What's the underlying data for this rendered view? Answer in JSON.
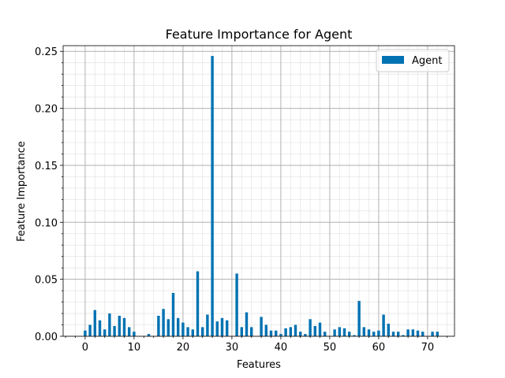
{
  "chart_data": {
    "type": "bar",
    "title": "Feature Importance for Agent",
    "xlabel": "Features",
    "ylabel": "Feature Importance",
    "xlim": [
      -4.5,
      75.5
    ],
    "ylim": [
      0,
      0.255
    ],
    "xticks": [
      0,
      10,
      20,
      30,
      40,
      50,
      60,
      70
    ],
    "yticks": [
      0.0,
      0.05,
      0.1,
      0.15,
      0.2,
      0.25
    ],
    "ytick_labels": [
      "0.00",
      "0.05",
      "0.10",
      "0.15",
      "0.20",
      "0.25"
    ],
    "grid": "major and minor",
    "legend": "top-right",
    "series": [
      {
        "name": "Agent",
        "color": "#0072B2",
        "x": [
          0,
          1,
          2,
          3,
          4,
          5,
          6,
          7,
          8,
          9,
          10,
          11,
          12,
          13,
          14,
          15,
          16,
          17,
          18,
          19,
          20,
          21,
          22,
          23,
          24,
          25,
          26,
          27,
          28,
          29,
          30,
          31,
          32,
          33,
          34,
          35,
          36,
          37,
          38,
          39,
          40,
          41,
          42,
          43,
          44,
          45,
          46,
          47,
          48,
          49,
          50,
          51,
          52,
          53,
          54,
          55,
          56,
          57,
          58,
          59,
          60,
          61,
          62,
          63,
          64,
          65,
          66,
          67,
          68,
          69,
          70,
          71,
          72
        ],
        "values": [
          0.005,
          0.01,
          0.023,
          0.014,
          0.006,
          0.02,
          0.009,
          0.018,
          0.016,
          0.008,
          0.004,
          0.0,
          0.0,
          0.002,
          0.0,
          0.018,
          0.024,
          0.015,
          0.038,
          0.016,
          0.012,
          0.008,
          0.006,
          0.057,
          0.008,
          0.019,
          0.246,
          0.013,
          0.016,
          0.014,
          0.0,
          0.055,
          0.008,
          0.021,
          0.008,
          0.0,
          0.017,
          0.01,
          0.005,
          0.005,
          0.002,
          0.007,
          0.008,
          0.01,
          0.004,
          0.002,
          0.015,
          0.009,
          0.012,
          0.004,
          0.0,
          0.006,
          0.008,
          0.007,
          0.004,
          0.001,
          0.031,
          0.008,
          0.006,
          0.004,
          0.005,
          0.019,
          0.011,
          0.004,
          0.004,
          0.001,
          0.006,
          0.006,
          0.005,
          0.004,
          0.0,
          0.004,
          0.004
        ]
      }
    ]
  }
}
